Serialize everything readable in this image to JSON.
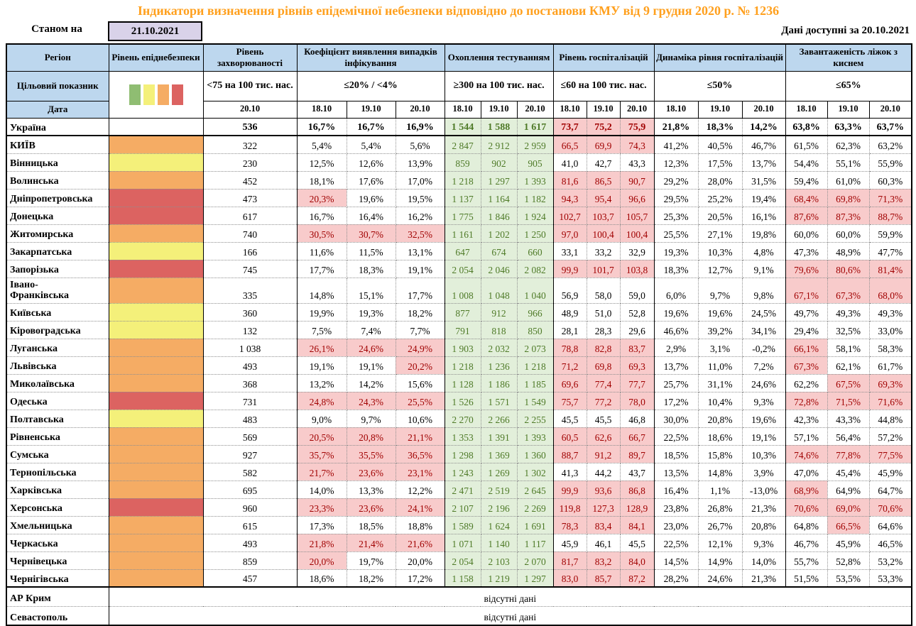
{
  "title": "Індикатори визначення рівнів епідемічної небезпеки відповідно до постанови КМУ від 9 грудня 2020 р. № 1236",
  "as_of_label": "Станом на",
  "as_of_date": "21.10.2021",
  "available_label": "Дані доступні за",
  "available_date": "20.10.2021",
  "no_data_text": "відсутні дані",
  "colors": {
    "title": "#FFA01E",
    "header_bg": "#BDD7EE",
    "date_box_bg": "#D9D2E9",
    "level_green": "#8FBD72",
    "level_yellow": "#F4F07A",
    "level_orange": "#F5AC64",
    "level_red": "#DC6361",
    "alert_bg": "#F8CBCB",
    "alert_text": "#A00000",
    "ok_bg": "#E2EFDA",
    "ok_text": "#4E7A27"
  },
  "header": {
    "region": "Регіон",
    "target_row_label": "Цільовий показник",
    "date_row_label": "Дата",
    "level_colors": [
      "#8FBD72",
      "#F4F07A",
      "#F5AC64",
      "#DC6361"
    ],
    "groups": [
      {
        "label": "Рівень епіднебезпеки",
        "target": "",
        "dates": []
      },
      {
        "label": "Рівень захворюваності",
        "target": "<75 на 100 тис. нас.",
        "dates": [
          "20.10"
        ]
      },
      {
        "label": "Коефіцієнт виявлення випадків інфікування",
        "target": "≤20% / <4%",
        "dates": [
          "18.10",
          "19.10",
          "20.10"
        ]
      },
      {
        "label": "Охоплення тестуванням",
        "target": "≥300 на 100 тис. нас.",
        "dates": [
          "18.10",
          "19.10",
          "20.10"
        ]
      },
      {
        "label": "Рівень госпіталізацій",
        "target": "≤60 на 100 тис. нас.",
        "dates": [
          "18.10",
          "19.10",
          "20.10"
        ]
      },
      {
        "label": "Динаміка рівня госпіталізацій",
        "target": "≤50%",
        "dates": [
          "18.10",
          "19.10",
          "20.10"
        ]
      },
      {
        "label": "Завантаженість ліжок з киснем",
        "target": "≤65%",
        "dates": [
          "18.10",
          "19.10",
          "20.10"
        ]
      }
    ]
  },
  "rows": [
    {
      "region": "Україна",
      "bold": true,
      "sep_below": true,
      "level": "white",
      "inc": "536",
      "det": [
        "16,7%",
        "16,7%",
        "16,9%"
      ],
      "det_hl": [
        0,
        0,
        0
      ],
      "test": [
        "1 544",
        "1 588",
        "1 617"
      ],
      "hosp": [
        "73,7",
        "75,2",
        "75,9"
      ],
      "hosp_hl": [
        1,
        1,
        1
      ],
      "dyn": [
        "21,8%",
        "18,3%",
        "14,2%"
      ],
      "beds": [
        "63,8%",
        "63,3%",
        "63,7%"
      ],
      "beds_hl": [
        0,
        0,
        0
      ]
    },
    {
      "region": "КИЇВ",
      "level": "orange",
      "inc": "322",
      "det": [
        "5,4%",
        "5,4%",
        "5,6%"
      ],
      "det_hl": [
        0,
        0,
        0
      ],
      "test": [
        "2 847",
        "2 912",
        "2 959"
      ],
      "hosp": [
        "66,5",
        "69,9",
        "74,3"
      ],
      "hosp_hl": [
        1,
        1,
        1
      ],
      "dyn": [
        "41,2%",
        "40,5%",
        "46,7%"
      ],
      "beds": [
        "61,5%",
        "62,3%",
        "63,2%"
      ],
      "beds_hl": [
        0,
        0,
        0
      ]
    },
    {
      "region": "Вінницька",
      "level": "yellow",
      "inc": "230",
      "det": [
        "12,5%",
        "12,6%",
        "13,9%"
      ],
      "det_hl": [
        0,
        0,
        0
      ],
      "test": [
        "859",
        "902",
        "905"
      ],
      "hosp": [
        "41,0",
        "42,7",
        "43,3"
      ],
      "hosp_hl": [
        0,
        0,
        0
      ],
      "dyn": [
        "12,3%",
        "17,5%",
        "13,7%"
      ],
      "beds": [
        "54,4%",
        "55,1%",
        "55,9%"
      ],
      "beds_hl": [
        0,
        0,
        0
      ]
    },
    {
      "region": "Волинська",
      "level": "orange",
      "inc": "452",
      "det": [
        "18,1%",
        "17,6%",
        "17,0%"
      ],
      "det_hl": [
        0,
        0,
        0
      ],
      "test": [
        "1 218",
        "1 297",
        "1 393"
      ],
      "hosp": [
        "81,6",
        "86,5",
        "90,7"
      ],
      "hosp_hl": [
        1,
        1,
        1
      ],
      "dyn": [
        "29,2%",
        "28,0%",
        "31,5%"
      ],
      "beds": [
        "59,4%",
        "61,0%",
        "60,3%"
      ],
      "beds_hl": [
        0,
        0,
        0
      ]
    },
    {
      "region": "Дніпропетровська",
      "level": "red",
      "inc": "473",
      "det": [
        "20,3%",
        "19,6%",
        "19,5%"
      ],
      "det_hl": [
        1,
        0,
        0
      ],
      "test": [
        "1 137",
        "1 164",
        "1 182"
      ],
      "hosp": [
        "94,3",
        "95,4",
        "96,6"
      ],
      "hosp_hl": [
        1,
        1,
        1
      ],
      "dyn": [
        "29,5%",
        "25,2%",
        "19,4%"
      ],
      "beds": [
        "68,4%",
        "69,8%",
        "71,3%"
      ],
      "beds_hl": [
        1,
        1,
        1
      ]
    },
    {
      "region": "Донецька",
      "level": "red",
      "inc": "617",
      "det": [
        "16,7%",
        "16,4%",
        "16,2%"
      ],
      "det_hl": [
        0,
        0,
        0
      ],
      "test": [
        "1 775",
        "1 846",
        "1 924"
      ],
      "hosp": [
        "102,7",
        "103,7",
        "105,7"
      ],
      "hosp_hl": [
        1,
        1,
        1
      ],
      "dyn": [
        "25,3%",
        "20,5%",
        "16,1%"
      ],
      "beds": [
        "87,6%",
        "87,3%",
        "88,7%"
      ],
      "beds_hl": [
        1,
        1,
        1
      ]
    },
    {
      "region": "Житомирська",
      "level": "orange",
      "inc": "740",
      "det": [
        "30,5%",
        "30,7%",
        "32,5%"
      ],
      "det_hl": [
        1,
        1,
        1
      ],
      "test": [
        "1 161",
        "1 202",
        "1 250"
      ],
      "hosp": [
        "97,0",
        "100,4",
        "100,4"
      ],
      "hosp_hl": [
        1,
        1,
        1
      ],
      "dyn": [
        "25,5%",
        "27,1%",
        "19,8%"
      ],
      "beds": [
        "60,0%",
        "60,0%",
        "59,9%"
      ],
      "beds_hl": [
        0,
        0,
        0
      ]
    },
    {
      "region": "Закарпатська",
      "level": "yellow",
      "inc": "166",
      "det": [
        "11,6%",
        "11,5%",
        "13,1%"
      ],
      "det_hl": [
        0,
        0,
        0
      ],
      "test": [
        "647",
        "674",
        "660"
      ],
      "hosp": [
        "33,1",
        "33,2",
        "32,9"
      ],
      "hosp_hl": [
        0,
        0,
        0
      ],
      "dyn": [
        "19,3%",
        "10,3%",
        "4,8%"
      ],
      "beds": [
        "47,3%",
        "48,9%",
        "47,7%"
      ],
      "beds_hl": [
        0,
        0,
        0
      ]
    },
    {
      "region": "Запорізька",
      "level": "red",
      "inc": "745",
      "det": [
        "17,7%",
        "18,3%",
        "19,1%"
      ],
      "det_hl": [
        0,
        0,
        0
      ],
      "test": [
        "2 054",
        "2 046",
        "2 082"
      ],
      "hosp": [
        "99,9",
        "101,7",
        "103,8"
      ],
      "hosp_hl": [
        1,
        1,
        1
      ],
      "dyn": [
        "18,3%",
        "12,7%",
        "9,1%"
      ],
      "beds": [
        "79,6%",
        "80,6%",
        "81,4%"
      ],
      "beds_hl": [
        1,
        1,
        1
      ]
    },
    {
      "region": "Івано-\nФранківська",
      "tall": true,
      "level": "orange",
      "inc": "335",
      "det": [
        "14,8%",
        "15,1%",
        "17,7%"
      ],
      "det_hl": [
        0,
        0,
        0
      ],
      "test": [
        "1 008",
        "1 048",
        "1 040"
      ],
      "hosp": [
        "56,9",
        "58,0",
        "59,0"
      ],
      "hosp_hl": [
        0,
        0,
        0
      ],
      "dyn": [
        "6,0%",
        "9,7%",
        "9,8%"
      ],
      "beds": [
        "67,1%",
        "67,3%",
        "68,0%"
      ],
      "beds_hl": [
        1,
        1,
        1
      ]
    },
    {
      "region": "Київська",
      "level": "yellow",
      "inc": "360",
      "det": [
        "19,9%",
        "19,3%",
        "18,2%"
      ],
      "det_hl": [
        0,
        0,
        0
      ],
      "test": [
        "877",
        "912",
        "966"
      ],
      "hosp": [
        "48,9",
        "51,0",
        "52,8"
      ],
      "hosp_hl": [
        0,
        0,
        0
      ],
      "dyn": [
        "19,6%",
        "19,6%",
        "24,5%"
      ],
      "beds": [
        "49,7%",
        "49,3%",
        "49,3%"
      ],
      "beds_hl": [
        0,
        0,
        0
      ]
    },
    {
      "region": "Кіровоградська",
      "level": "yellow",
      "inc": "132",
      "det": [
        "7,5%",
        "7,4%",
        "7,7%"
      ],
      "det_hl": [
        0,
        0,
        0
      ],
      "test": [
        "791",
        "818",
        "850"
      ],
      "hosp": [
        "28,1",
        "28,3",
        "29,6"
      ],
      "hosp_hl": [
        0,
        0,
        0
      ],
      "dyn": [
        "46,6%",
        "39,2%",
        "34,1%"
      ],
      "beds": [
        "29,4%",
        "32,5%",
        "33,0%"
      ],
      "beds_hl": [
        0,
        0,
        0
      ]
    },
    {
      "region": "Луганська",
      "level": "orange",
      "inc": "1 038",
      "det": [
        "26,1%",
        "24,6%",
        "24,9%"
      ],
      "det_hl": [
        1,
        1,
        1
      ],
      "test": [
        "1 903",
        "2 032",
        "2 073"
      ],
      "hosp": [
        "78,8",
        "82,8",
        "83,7"
      ],
      "hosp_hl": [
        1,
        1,
        1
      ],
      "dyn": [
        "2,9%",
        "3,1%",
        "-0,2%"
      ],
      "beds": [
        "66,1%",
        "58,1%",
        "58,3%"
      ],
      "beds_hl": [
        1,
        0,
        0
      ]
    },
    {
      "region": "Львівська",
      "level": "orange",
      "inc": "493",
      "det": [
        "19,1%",
        "19,1%",
        "20,2%"
      ],
      "det_hl": [
        0,
        0,
        1
      ],
      "test": [
        "1 218",
        "1 236",
        "1 218"
      ],
      "hosp": [
        "71,2",
        "69,8",
        "69,3"
      ],
      "hosp_hl": [
        1,
        1,
        1
      ],
      "dyn": [
        "13,7%",
        "11,0%",
        "7,2%"
      ],
      "beds": [
        "67,3%",
        "62,1%",
        "61,7%"
      ],
      "beds_hl": [
        1,
        0,
        0
      ]
    },
    {
      "region": "Миколаївська",
      "level": "orange",
      "inc": "368",
      "det": [
        "13,2%",
        "14,2%",
        "15,6%"
      ],
      "det_hl": [
        0,
        0,
        0
      ],
      "test": [
        "1 128",
        "1 186",
        "1 185"
      ],
      "hosp": [
        "69,6",
        "77,4",
        "77,7"
      ],
      "hosp_hl": [
        1,
        1,
        1
      ],
      "dyn": [
        "25,7%",
        "31,1%",
        "24,6%"
      ],
      "beds": [
        "62,2%",
        "67,5%",
        "69,3%"
      ],
      "beds_hl": [
        0,
        1,
        1
      ]
    },
    {
      "region": "Одеська",
      "level": "red",
      "inc": "731",
      "det": [
        "24,8%",
        "24,3%",
        "25,5%"
      ],
      "det_hl": [
        1,
        1,
        1
      ],
      "test": [
        "1 526",
        "1 571",
        "1 549"
      ],
      "hosp": [
        "75,7",
        "77,2",
        "78,0"
      ],
      "hosp_hl": [
        1,
        1,
        1
      ],
      "dyn": [
        "17,2%",
        "10,4%",
        "9,3%"
      ],
      "beds": [
        "72,8%",
        "71,5%",
        "71,6%"
      ],
      "beds_hl": [
        1,
        1,
        1
      ]
    },
    {
      "region": "Полтавська",
      "level": "yellow",
      "inc": "483",
      "det": [
        "9,0%",
        "9,7%",
        "10,6%"
      ],
      "det_hl": [
        0,
        0,
        0
      ],
      "test": [
        "2 270",
        "2 266",
        "2 255"
      ],
      "hosp": [
        "45,5",
        "45,5",
        "46,8"
      ],
      "hosp_hl": [
        0,
        0,
        0
      ],
      "dyn": [
        "30,0%",
        "20,8%",
        "19,6%"
      ],
      "beds": [
        "42,3%",
        "43,3%",
        "44,8%"
      ],
      "beds_hl": [
        0,
        0,
        0
      ]
    },
    {
      "region": "Рівненська",
      "level": "orange",
      "inc": "569",
      "det": [
        "20,5%",
        "20,8%",
        "21,1%"
      ],
      "det_hl": [
        1,
        1,
        1
      ],
      "test": [
        "1 353",
        "1 391",
        "1 393"
      ],
      "hosp": [
        "60,5",
        "62,6",
        "66,7"
      ],
      "hosp_hl": [
        1,
        1,
        1
      ],
      "dyn": [
        "22,5%",
        "18,6%",
        "19,1%"
      ],
      "beds": [
        "57,1%",
        "56,4%",
        "57,2%"
      ],
      "beds_hl": [
        0,
        0,
        0
      ]
    },
    {
      "region": "Сумська",
      "level": "orange",
      "inc": "927",
      "det": [
        "35,7%",
        "35,5%",
        "36,5%"
      ],
      "det_hl": [
        1,
        1,
        1
      ],
      "test": [
        "1 298",
        "1 369",
        "1 360"
      ],
      "hosp": [
        "88,7",
        "91,2",
        "89,7"
      ],
      "hosp_hl": [
        1,
        1,
        1
      ],
      "dyn": [
        "18,5%",
        "15,8%",
        "10,3%"
      ],
      "beds": [
        "74,6%",
        "77,8%",
        "77,5%"
      ],
      "beds_hl": [
        1,
        1,
        1
      ]
    },
    {
      "region": "Тернопільська",
      "level": "orange",
      "inc": "582",
      "det": [
        "21,7%",
        "23,6%",
        "23,1%"
      ],
      "det_hl": [
        1,
        1,
        1
      ],
      "test": [
        "1 243",
        "1 269",
        "1 302"
      ],
      "hosp": [
        "41,3",
        "44,2",
        "43,7"
      ],
      "hosp_hl": [
        0,
        0,
        0
      ],
      "dyn": [
        "13,5%",
        "14,8%",
        "3,9%"
      ],
      "beds": [
        "47,0%",
        "45,4%",
        "45,9%"
      ],
      "beds_hl": [
        0,
        0,
        0
      ]
    },
    {
      "region": "Харківська",
      "level": "orange",
      "inc": "695",
      "det": [
        "14,0%",
        "13,3%",
        "12,2%"
      ],
      "det_hl": [
        0,
        0,
        0
      ],
      "test": [
        "2 471",
        "2 519",
        "2 645"
      ],
      "hosp": [
        "99,9",
        "93,6",
        "86,8"
      ],
      "hosp_hl": [
        1,
        1,
        1
      ],
      "dyn": [
        "16,4%",
        "1,1%",
        "-13,0%"
      ],
      "beds": [
        "68,9%",
        "64,9%",
        "64,7%"
      ],
      "beds_hl": [
        1,
        0,
        0
      ]
    },
    {
      "region": "Херсонська",
      "level": "red",
      "inc": "960",
      "det": [
        "23,3%",
        "23,6%",
        "24,1%"
      ],
      "det_hl": [
        1,
        1,
        1
      ],
      "test": [
        "2 107",
        "2 196",
        "2 269"
      ],
      "hosp": [
        "119,8",
        "127,3",
        "128,9"
      ],
      "hosp_hl": [
        1,
        1,
        1
      ],
      "dyn": [
        "23,8%",
        "26,8%",
        "21,3%"
      ],
      "beds": [
        "70,6%",
        "69,0%",
        "70,6%"
      ],
      "beds_hl": [
        1,
        1,
        1
      ]
    },
    {
      "region": "Хмельницька",
      "level": "orange",
      "inc": "615",
      "det": [
        "17,3%",
        "18,5%",
        "18,8%"
      ],
      "det_hl": [
        0,
        0,
        0
      ],
      "test": [
        "1 589",
        "1 624",
        "1 691"
      ],
      "hosp": [
        "78,3",
        "83,4",
        "84,1"
      ],
      "hosp_hl": [
        1,
        1,
        1
      ],
      "dyn": [
        "23,0%",
        "26,7%",
        "20,8%"
      ],
      "beds": [
        "64,8%",
        "66,5%",
        "64,6%"
      ],
      "beds_hl": [
        0,
        1,
        0
      ]
    },
    {
      "region": "Черкаська",
      "level": "orange",
      "inc": "493",
      "det": [
        "21,8%",
        "21,4%",
        "21,6%"
      ],
      "det_hl": [
        1,
        1,
        1
      ],
      "test": [
        "1 071",
        "1 140",
        "1 117"
      ],
      "hosp": [
        "45,9",
        "46,1",
        "45,5"
      ],
      "hosp_hl": [
        0,
        0,
        0
      ],
      "dyn": [
        "22,5%",
        "12,1%",
        "9,3%"
      ],
      "beds": [
        "46,7%",
        "45,9%",
        "46,5%"
      ],
      "beds_hl": [
        0,
        0,
        0
      ]
    },
    {
      "region": "Чернівецька",
      "level": "orange",
      "inc": "859",
      "det": [
        "20,0%",
        "19,7%",
        "20,0%"
      ],
      "det_hl": [
        1,
        0,
        0
      ],
      "test": [
        "2 054",
        "2 103",
        "2 070"
      ],
      "hosp": [
        "81,7",
        "83,2",
        "84,0"
      ],
      "hosp_hl": [
        1,
        1,
        1
      ],
      "dyn": [
        "14,5%",
        "14,9%",
        "14,0%"
      ],
      "beds": [
        "55,7%",
        "52,8%",
        "53,2%"
      ],
      "beds_hl": [
        0,
        0,
        0
      ]
    },
    {
      "region": "Чернігівська",
      "sep_below": true,
      "level": "orange",
      "inc": "457",
      "det": [
        "18,6%",
        "18,2%",
        "17,2%"
      ],
      "det_hl": [
        0,
        0,
        0
      ],
      "test": [
        "1 158",
        "1 219",
        "1 297"
      ],
      "hosp": [
        "83,0",
        "85,7",
        "87,2"
      ],
      "hosp_hl": [
        1,
        1,
        1
      ],
      "dyn": [
        "28,2%",
        "24,6%",
        "21,3%"
      ],
      "beds": [
        "51,5%",
        "53,5%",
        "53,3%"
      ],
      "beds_hl": [
        0,
        0,
        0
      ]
    },
    {
      "region": "АР Крим",
      "no_data": true
    },
    {
      "region": "Севастополь",
      "no_data": true
    }
  ]
}
